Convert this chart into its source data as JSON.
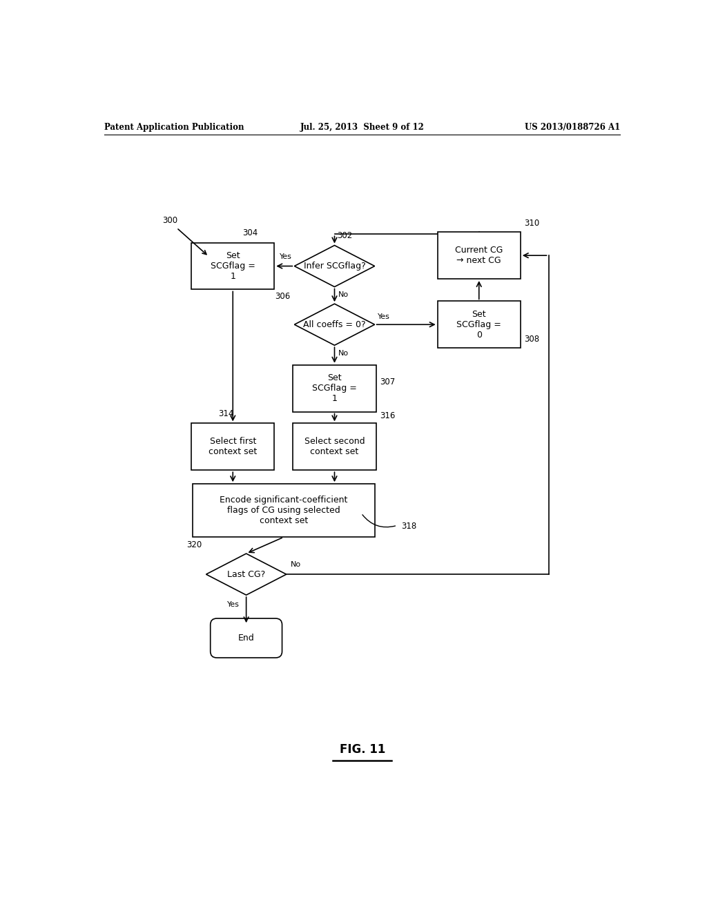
{
  "header_left": "Patent Application Publication",
  "header_mid": "Jul. 25, 2013  Sheet 9 of 12",
  "header_right": "US 2013/0188726 A1",
  "fig_label": "FIG. 11",
  "background_color": "#ffffff",
  "line_color": "#000000",
  "font_color": "#000000"
}
